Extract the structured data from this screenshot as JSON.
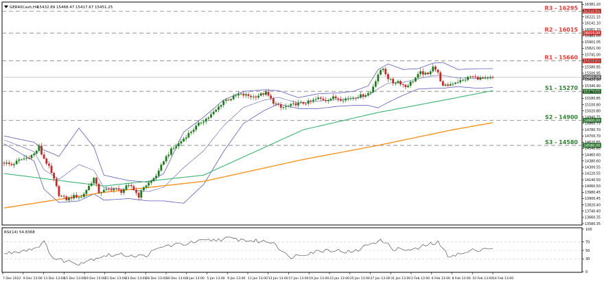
{
  "header": {
    "symbol": "GER40Cash,H4",
    "ohlc": "15432.89 15468.47 15417.67 15451.25"
  },
  "colors": {
    "up_candle": "#1f7a1f",
    "down_candle": "#c62828",
    "bollinger": "#5b5bb5",
    "ma_fast": "#3cb371",
    "ma_slow": "#f7931e",
    "level_line": "#808080",
    "resistance_label": "#e53935",
    "support_label": "#2e7d32",
    "current_price_box": "#757575",
    "rsi_line": "#555555"
  },
  "chart_data": [
    {
      "type": "candlestick",
      "title": "GER40Cash,H4",
      "ylim": [
        13580,
        16385
      ],
      "yticks": [
        16381.2,
        16301.15,
        16221.15,
        16141.1,
        16061.1,
        15981.05,
        15901.05,
        15821.0,
        15741.0,
        15660.95,
        15580.95,
        15500.95,
        15420.9,
        15340.9,
        15260.85,
        15180.85,
        15100.8,
        15020.8,
        14940.75,
        14860.75,
        14780.7,
        14700.7,
        14620.65,
        14540.65,
        14460.6,
        14380.6,
        14300.55,
        14220.55,
        14140.5,
        14060.5,
        13980.45,
        13900.45,
        13820.4,
        13740.4,
        13660.35,
        13580.35
      ],
      "xticks": [
        "7 Dec 2022",
        "9 Dec 13:00",
        "13 Dec 13:00",
        "15 Dec 13:00",
        "19 Dec 13:00",
        "21 Dec 13:00",
        "23 Dec 13:00",
        "28 Dec 13:00",
        "30 Dec 13:00",
        "3 Jan 13:00",
        "5 Jan 13:00",
        "9 Jan 13:00",
        "11 Jan 13:00",
        "13 Jan 13:00",
        "17 Jan 13:00",
        "19 Jan 13:00",
        "23 Jan 13:00",
        "25 Jan 13:00",
        "27 Jan 13:00",
        "31 Jan 13:00",
        "2 Feb 13:00",
        "6 Feb 13:00",
        "8 Feb 13:00",
        "10 Feb 13:00",
        "14 Feb 13:00"
      ],
      "levels": [
        {
          "label": "R3 - 16295",
          "value": 16295,
          "kind": "resistance"
        },
        {
          "label": "R2 - 16015",
          "value": 16015,
          "kind": "resistance"
        },
        {
          "label": "R1 - 15660",
          "value": 15660,
          "kind": "resistance"
        },
        {
          "label": "S1 - 15270",
          "value": 15270,
          "kind": "support"
        },
        {
          "label": "S2 - 14900",
          "value": 14900,
          "kind": "support"
        },
        {
          "label": "S3 - 14580",
          "value": 14580,
          "kind": "support"
        }
      ],
      "level_tags": [
        "16295.00",
        "16015.00",
        "15660.00",
        "15270.00",
        "14900.00",
        "14580.00"
      ],
      "current_price": 15451.25,
      "current_price_label": "15451.25",
      "close_anchors": [
        [
          0,
          14360
        ],
        [
          3,
          14330
        ],
        [
          6,
          14390
        ],
        [
          9,
          14420
        ],
        [
          12,
          14470
        ],
        [
          14,
          14560
        ],
        [
          15,
          14470
        ],
        [
          18,
          14300
        ],
        [
          20,
          14140
        ],
        [
          22,
          13950
        ],
        [
          25,
          13890
        ],
        [
          28,
          13930
        ],
        [
          31,
          13920
        ],
        [
          34,
          14060
        ],
        [
          36,
          14160
        ],
        [
          38,
          13980
        ],
        [
          41,
          14010
        ],
        [
          44,
          14030
        ],
        [
          47,
          13990
        ],
        [
          49,
          14050
        ],
        [
          51,
          14060
        ],
        [
          54,
          13930
        ],
        [
          56,
          14050
        ],
        [
          59,
          14120
        ],
        [
          62,
          14240
        ],
        [
          64,
          14390
        ],
        [
          67,
          14520
        ],
        [
          70,
          14600
        ],
        [
          73,
          14700
        ],
        [
          76,
          14790
        ],
        [
          79,
          14880
        ],
        [
          82,
          14940
        ],
        [
          85,
          15030
        ],
        [
          88,
          15150
        ],
        [
          91,
          15180
        ],
        [
          94,
          15230
        ],
        [
          97,
          15220
        ],
        [
          100,
          15200
        ],
        [
          103,
          15230
        ],
        [
          105,
          15250
        ],
        [
          108,
          15130
        ],
        [
          111,
          15060
        ],
        [
          114,
          15080
        ],
        [
          117,
          15110
        ],
        [
          120,
          15120
        ],
        [
          123,
          15140
        ],
        [
          126,
          15180
        ],
        [
          129,
          15160
        ],
        [
          132,
          15190
        ],
        [
          135,
          15170
        ],
        [
          138,
          15180
        ],
        [
          141,
          15200
        ],
        [
          144,
          15220
        ],
        [
          147,
          15260
        ],
        [
          150,
          15490
        ],
        [
          152,
          15560
        ],
        [
          154,
          15440
        ],
        [
          156,
          15380
        ],
        [
          158,
          15400
        ],
        [
          161,
          15330
        ],
        [
          164,
          15410
        ],
        [
          167,
          15510
        ],
        [
          170,
          15480
        ],
        [
          172,
          15600
        ],
        [
          174,
          15500
        ],
        [
          176,
          15330
        ],
        [
          178,
          15350
        ],
        [
          181,
          15390
        ],
        [
          184,
          15410
        ],
        [
          187,
          15460
        ],
        [
          190,
          15440
        ],
        [
          193,
          15430
        ],
        [
          196,
          15451
        ]
      ],
      "ma_fast": {
        "x": [
          0,
          40,
          80,
          120,
          150,
          180,
          196
        ],
        "y": [
          14220,
          14060,
          14200,
          14780,
          15000,
          15180,
          15280
        ]
      },
      "ma_slow": {
        "x": [
          0,
          40,
          80,
          120,
          150,
          180,
          196
        ],
        "y": [
          13780,
          13980,
          14120,
          14400,
          14580,
          14780,
          14870
        ]
      },
      "bollinger_band": {
        "x": [
          0,
          12,
          16,
          22,
          30,
          36,
          40,
          50,
          58,
          64,
          72,
          80,
          88,
          96,
          104,
          110,
          118,
          126,
          134,
          140,
          146,
          150,
          154,
          160,
          166,
          172,
          176,
          182,
          190,
          196
        ],
        "upper": [
          14700,
          14620,
          14520,
          14440,
          14800,
          14560,
          14200,
          14130,
          14110,
          14220,
          14750,
          14940,
          15160,
          15270,
          15290,
          15280,
          15190,
          15240,
          15250,
          15270,
          15340,
          15550,
          15620,
          15550,
          15560,
          15630,
          15640,
          15550,
          15560,
          15560
        ],
        "lower": [
          14600,
          14380,
          14020,
          13850,
          13870,
          13960,
          13880,
          13900,
          13870,
          13870,
          13840,
          14080,
          14500,
          14860,
          15020,
          15110,
          15050,
          15050,
          15080,
          15090,
          15090,
          15060,
          15130,
          15220,
          15300,
          15310,
          15310,
          15330,
          15310,
          15320
        ]
      }
    },
    {
      "type": "line",
      "title": "RSI(14) 54.8368",
      "ylim": [
        0,
        100
      ],
      "yticks": [
        100,
        70,
        50,
        30,
        0
      ],
      "x": [
        0,
        12,
        16,
        20,
        30,
        40,
        48,
        56,
        64,
        72,
        80,
        90,
        100,
        108,
        114,
        122,
        130,
        140,
        148,
        152,
        156,
        164,
        170,
        174,
        178,
        184,
        188,
        194,
        196
      ],
      "values": [
        42,
        55,
        68,
        30,
        20,
        38,
        40,
        36,
        60,
        65,
        72,
        78,
        72,
        70,
        34,
        44,
        52,
        45,
        70,
        72,
        54,
        50,
        64,
        68,
        38,
        42,
        50,
        56,
        55
      ]
    }
  ]
}
